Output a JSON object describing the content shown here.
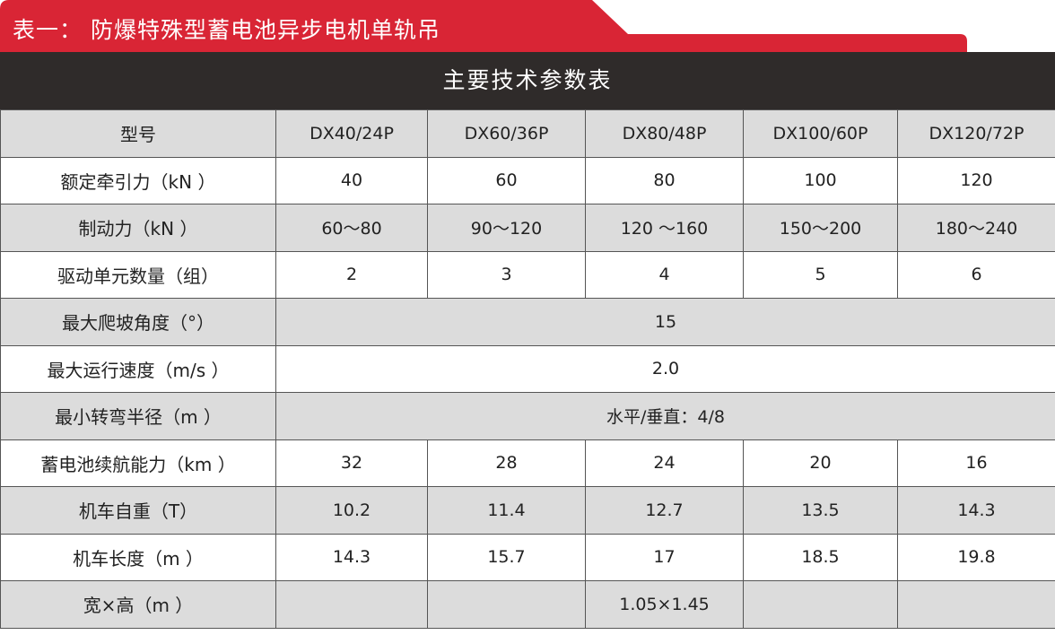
{
  "title": "表一： 防爆特殊型蓄电池异步电机单轨吊",
  "table_title": "主要技术参数表",
  "colors": {
    "accent_red": "#d92535",
    "header_dark": "#2f2b2a",
    "row_gray": "#dcdcdc"
  },
  "rows": [
    {
      "label": "型号",
      "cells": [
        "DX40/24P",
        "DX60/36P",
        "DX80/48P",
        "DX100/60P",
        "DX120/72P"
      ]
    },
    {
      "label": "额定牵引力（kN ）",
      "cells": [
        "40",
        "60",
        "80",
        "100",
        "120"
      ]
    },
    {
      "label": "制动力（kN ）",
      "cells": [
        "60～80",
        "90～120",
        "120 ～160",
        "150～200",
        "180～240"
      ]
    },
    {
      "label": "驱动单元数量（组）",
      "cells": [
        "2",
        "3",
        "4",
        "5",
        "6"
      ]
    },
    {
      "label": "最大爬坡角度（°）",
      "merged": "15"
    },
    {
      "label": "最大运行速度（m/s ）",
      "merged": "2.0"
    },
    {
      "label": "最小转弯半径（m ）",
      "merged": "水平/垂直：4/8"
    },
    {
      "label": "蓄电池续航能力（km ）",
      "cells": [
        "32",
        "28",
        "24",
        "20",
        "16"
      ]
    },
    {
      "label": "机车自重（T）",
      "cells": [
        "10.2",
        "11.4",
        "12.7",
        "13.5",
        "14.3"
      ]
    },
    {
      "label": "机车长度（m ）",
      "cells": [
        "14.3",
        "15.7",
        "17",
        "18.5",
        "19.8"
      ]
    },
    {
      "label": "宽×高（m ）",
      "cells": [
        "",
        "",
        "1.05×1.45",
        "",
        ""
      ]
    }
  ]
}
